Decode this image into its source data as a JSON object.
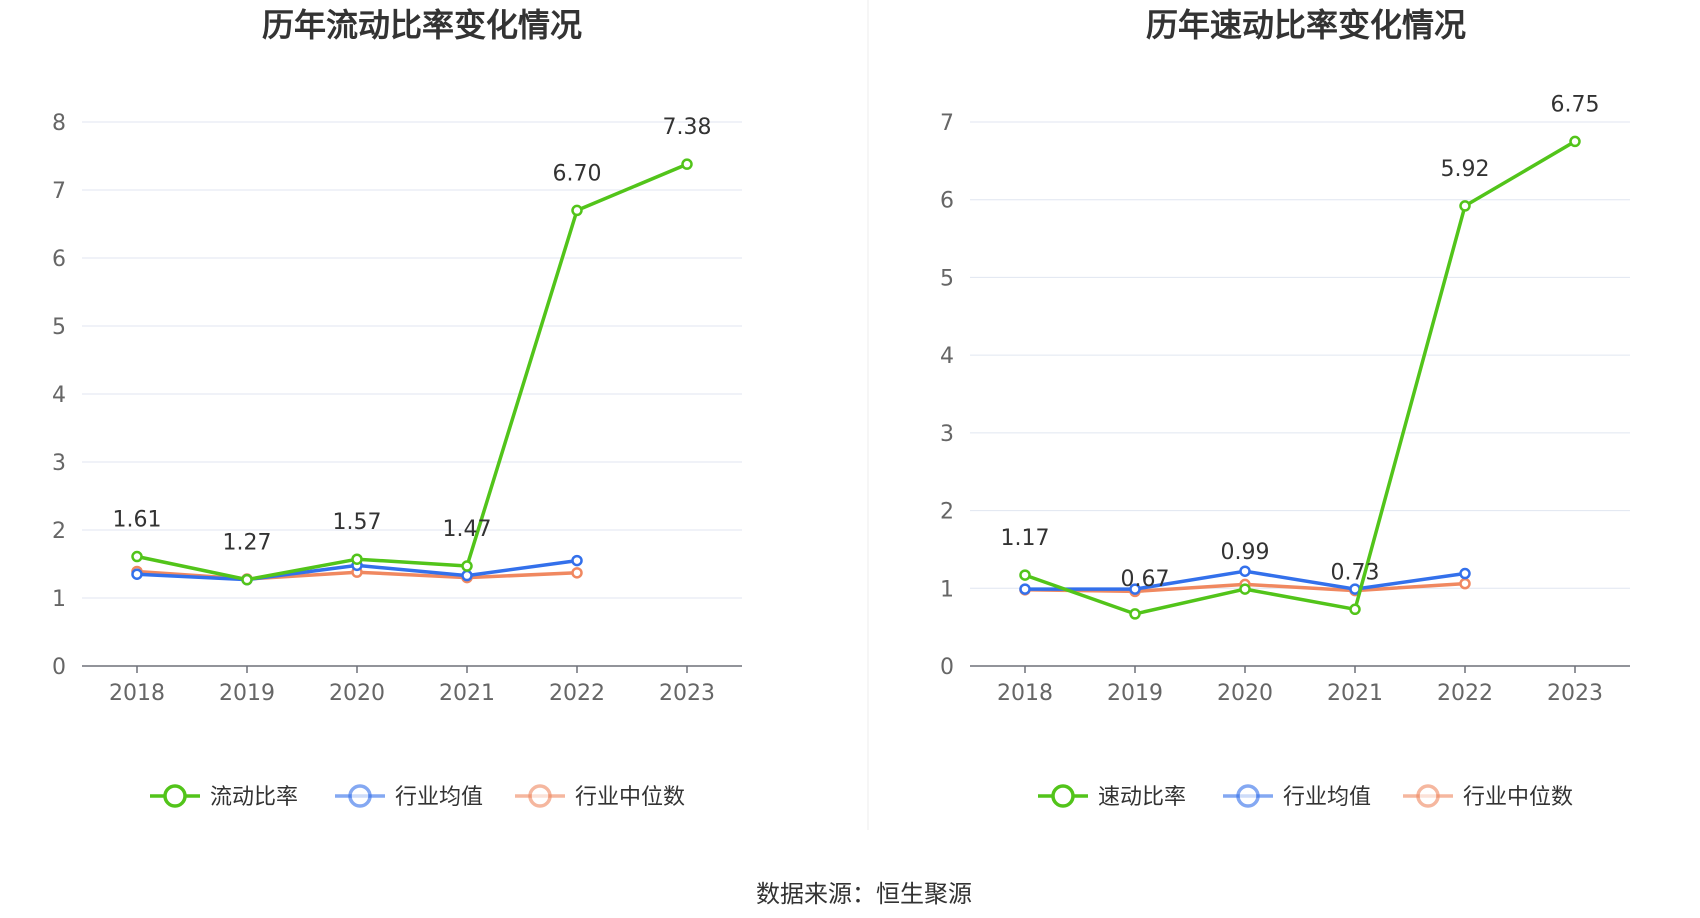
{
  "source_label": "数据来源：恒生聚源",
  "colors": {
    "main": "#52c41a",
    "avg": "#3370eb",
    "median": "#f08860",
    "grid": "#e0e6f1",
    "axis": "#6e7079"
  },
  "chart_data": [
    {
      "type": "line",
      "title": "历年流动比率变化情况",
      "categories": [
        "2018",
        "2019",
        "2020",
        "2021",
        "2022",
        "2023"
      ],
      "ylim": [
        0,
        8
      ],
      "yticks": [
        "0",
        "1",
        "2",
        "3",
        "4",
        "5",
        "6",
        "7",
        "8"
      ],
      "grid": true,
      "legend_position": "bottom",
      "series": [
        {
          "name": "流动比率",
          "values": [
            1.61,
            1.27,
            1.57,
            1.47,
            6.7,
            7.38
          ],
          "labels": [
            "1.61",
            "1.27",
            "1.57",
            "1.47",
            "6.70",
            "7.38"
          ],
          "color": "#52c41a"
        },
        {
          "name": "行业均值",
          "values": [
            1.35,
            1.27,
            1.48,
            1.33,
            1.55,
            null
          ],
          "color": "#3370eb"
        },
        {
          "name": "行业中位数",
          "values": [
            1.39,
            1.28,
            1.38,
            1.3,
            1.37,
            null
          ],
          "color": "#f08860"
        }
      ]
    },
    {
      "type": "line",
      "title": "历年速动比率变化情况",
      "categories": [
        "2018",
        "2019",
        "2020",
        "2021",
        "2022",
        "2023"
      ],
      "ylim": [
        0,
        7
      ],
      "yticks": [
        "0",
        "1",
        "2",
        "3",
        "4",
        "5",
        "6",
        "7"
      ],
      "grid": true,
      "legend_position": "bottom",
      "series": [
        {
          "name": "速动比率",
          "values": [
            1.17,
            0.67,
            0.99,
            0.73,
            5.92,
            6.75
          ],
          "labels": [
            "1.17",
            "0.67",
            "0.99",
            "0.73",
            "5.92",
            "6.75"
          ],
          "color": "#52c41a"
        },
        {
          "name": "行业均值",
          "values": [
            0.99,
            0.99,
            1.22,
            0.99,
            1.19,
            null
          ],
          "color": "#3370eb"
        },
        {
          "name": "行业中位数",
          "values": [
            0.98,
            0.96,
            1.05,
            0.97,
            1.06,
            null
          ],
          "color": "#f08860"
        }
      ]
    }
  ]
}
